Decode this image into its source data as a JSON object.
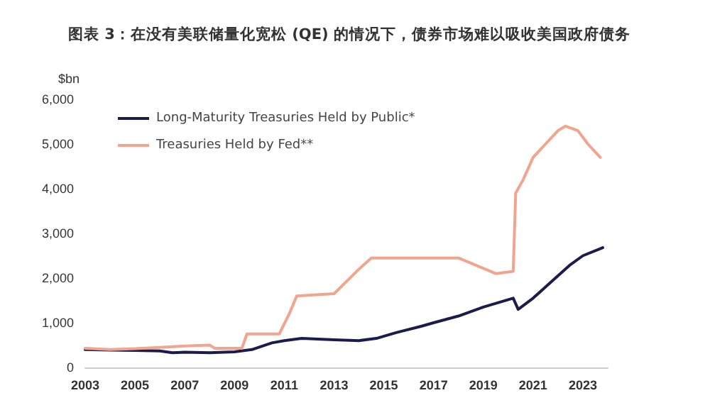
{
  "chart_data": {
    "type": "line",
    "title": "图表 3：在没有美联储量化宽松 (QE) 的情况下，债券市场难以吸收美国政府债务",
    "ylabel": "$bn",
    "xlim": [
      2003,
      2024
    ],
    "xticks": [
      2003,
      2005,
      2007,
      2009,
      2011,
      2013,
      2015,
      2017,
      2019,
      2021,
      2023
    ],
    "ylim": [
      0,
      6000
    ],
    "yticks": [
      0,
      {
        "value": 1000,
        "label": "1,000"
      },
      {
        "value": 2000,
        "label": "2,000"
      },
      {
        "value": 3000,
        "label": "3,000"
      },
      {
        "value": 4000,
        "label": "4,000"
      },
      {
        "value": 5000,
        "label": "5,000"
      },
      {
        "value": 6000,
        "label": "6,000"
      }
    ],
    "legend": "top left",
    "grid": false,
    "marker": "none",
    "line_style": "solid",
    "series": [
      {
        "name": "Long-Maturity Treasuries Held by Public*",
        "color": "#1c1c4a",
        "x": [
          2003,
          2004,
          2005,
          2006,
          2006.5,
          2007,
          2008,
          2009,
          2009.7,
          2010.5,
          2011,
          2011.7,
          2012.5,
          2013,
          2014,
          2014.7,
          2015.5,
          2016.5,
          2017,
          2018,
          2019,
          2020.2,
          2020.4,
          2021,
          2021.5,
          2022,
          2022.5,
          2023,
          2023.8
        ],
        "values": [
          400,
          390,
          380,
          370,
          330,
          340,
          330,
          350,
          400,
          550,
          600,
          650,
          630,
          620,
          600,
          650,
          780,
          920,
          1000,
          1150,
          1350,
          1550,
          1300,
          1550,
          1800,
          2050,
          2300,
          2500,
          2680
        ]
      },
      {
        "name": "Treasuries Held by Fed**",
        "color": "#f2a58e",
        "x": [
          2003,
          2004,
          2005,
          2006,
          2007,
          2008,
          2008.2,
          2009.3,
          2009.5,
          2010.8,
          2011.2,
          2011.5,
          2013,
          2014,
          2014.5,
          2018,
          2019.5,
          2020.2,
          2020.3,
          2020.6,
          2021,
          2021.5,
          2022,
          2022.3,
          2022.8,
          2023.2,
          2023.7
        ],
        "values": [
          430,
          400,
          420,
          450,
          480,
          500,
          430,
          430,
          750,
          750,
          1200,
          1600,
          1650,
          2200,
          2450,
          2450,
          2100,
          2150,
          3900,
          4200,
          4700,
          5000,
          5300,
          5400,
          5300,
          5000,
          4700
        ]
      }
    ]
  }
}
